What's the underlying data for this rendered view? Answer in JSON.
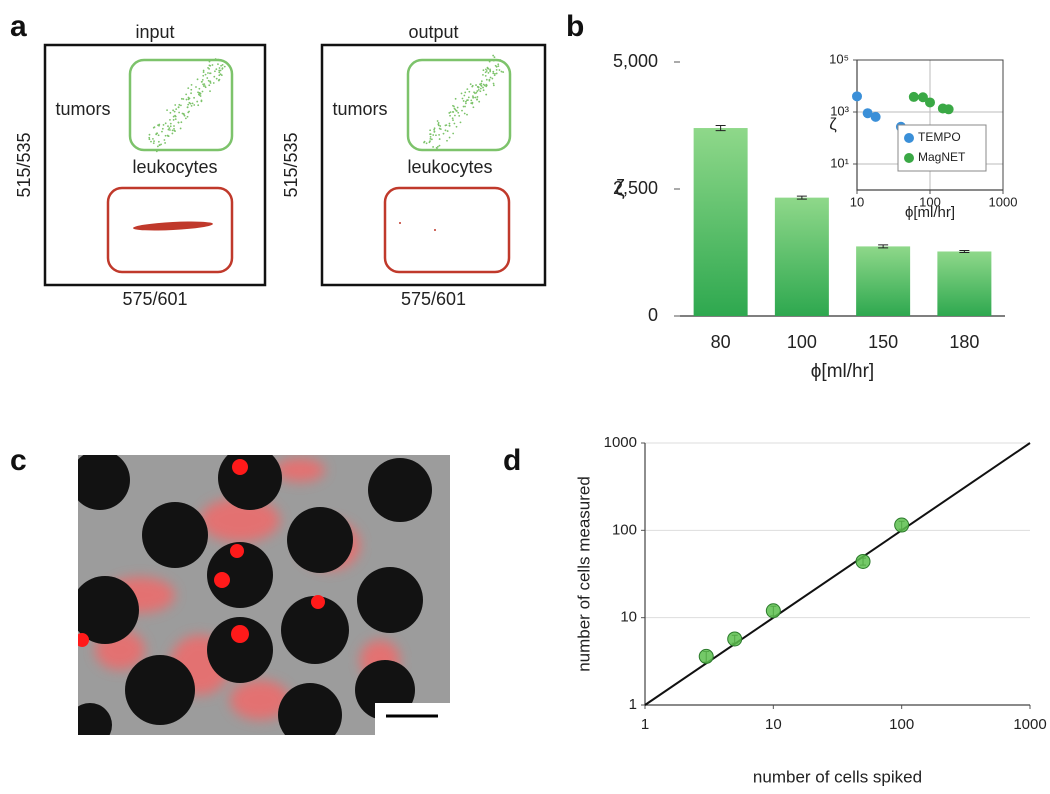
{
  "panel_labels": [
    "a",
    "b",
    "c",
    "d"
  ],
  "chart_data": [
    {
      "type": "flow",
      "title": "input",
      "xlabel": "575/601",
      "ylabel": "515/535",
      "gates": [
        {
          "label": "tumors",
          "color": "#7dc36b"
        },
        {
          "label": "leukocytes",
          "color": "#c0392b"
        }
      ]
    },
    {
      "type": "flow",
      "title": "output",
      "xlabel": "575/601",
      "ylabel": "515/535",
      "gates": [
        {
          "label": "tumors",
          "color": "#7dc36b"
        },
        {
          "label": "leukocytes",
          "color": "#c0392b"
        }
      ]
    },
    {
      "type": "bar",
      "xlabel": "ϕ[ml/hr]",
      "ylabel": "ζ",
      "categories": [
        "80",
        "100",
        "150",
        "180"
      ],
      "values": [
        3700,
        2330,
        1370,
        1270
      ],
      "errors": [
        50,
        30,
        30,
        20
      ],
      "color": "#2ea84f",
      "ylim": [
        0,
        5000
      ],
      "yticks": [
        0,
        {
          "value": 2500,
          "label": "2,500"
        },
        {
          "value": 5000,
          "label": "5,000"
        }
      ]
    },
    {
      "type": "scatter",
      "xlabel": "ϕ[ml/hr]",
      "ylabel": "ζ",
      "log_x": true,
      "log_y": true,
      "grid": true,
      "legend": "lower right",
      "xlim": [
        10,
        1000
      ],
      "xticks": [
        10,
        100,
        1000
      ],
      "ylim": [
        1,
        100000
      ],
      "yticks": [
        {
          "value": 10,
          "label": "10¹"
        },
        {
          "value": 1000,
          "label": "10³"
        },
        {
          "value": 100000,
          "label": "10⁵"
        }
      ],
      "series": [
        {
          "name": "TEMPO",
          "color": "#3a8fd8",
          "x": [
            10,
            14,
            18,
            40
          ],
          "values": [
            4000,
            900,
            650,
            270
          ]
        },
        {
          "name": "MagNET",
          "color": "#3aa845",
          "x": [
            60,
            80,
            100,
            150,
            180
          ],
          "values": [
            3800,
            3700,
            2330,
            1370,
            1270
          ]
        }
      ]
    },
    {
      "type": "scatter",
      "xlabel": "number of cells spiked",
      "ylabel": "number of cells measured",
      "log_x": true,
      "log_y": true,
      "grid": true,
      "xlim": [
        1,
        1000
      ],
      "xticks": [
        1,
        10,
        100,
        1000
      ],
      "ylim": [
        1,
        1000
      ],
      "yticks": [
        1,
        10,
        100,
        1000
      ],
      "series": [
        {
          "color": "#5cbf4e",
          "x": [
            3,
            5,
            10,
            50,
            100
          ],
          "values": [
            3.6,
            5.7,
            12,
            44,
            115
          ],
          "errors": [
            0.5,
            0.6,
            1.5,
            4,
            12
          ]
        }
      ],
      "line": {
        "x": [
          1,
          1000
        ],
        "values": [
          1,
          1000
        ],
        "color": "#111"
      }
    }
  ]
}
